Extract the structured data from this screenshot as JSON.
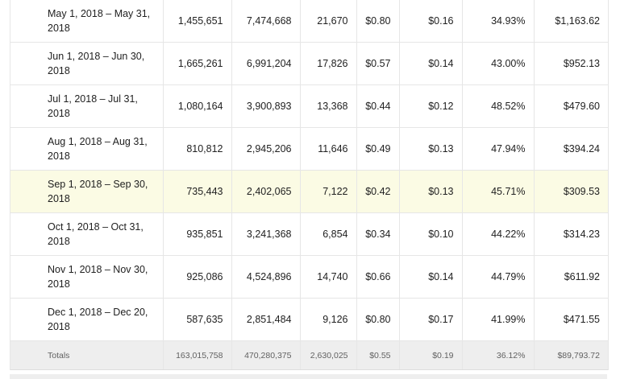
{
  "rows": [
    {
      "period": "May 1, 2018 – May 31, 2018",
      "c1": "1,455,651",
      "c2": "7,474,668",
      "c3": "21,670",
      "c4": "$0.80",
      "c5": "$0.16",
      "c6": "34.93%",
      "c7": "$1,163.62"
    },
    {
      "period": "Jun 1, 2018 – Jun 30, 2018",
      "c1": "1,665,261",
      "c2": "6,991,204",
      "c3": "17,826",
      "c4": "$0.57",
      "c5": "$0.14",
      "c6": "43.00%",
      "c7": "$952.13"
    },
    {
      "period": "Jul 1, 2018 – Jul 31, 2018",
      "c1": "1,080,164",
      "c2": "3,900,893",
      "c3": "13,368",
      "c4": "$0.44",
      "c5": "$0.12",
      "c6": "48.52%",
      "c7": "$479.60"
    },
    {
      "period": "Aug 1, 2018 – Aug 31, 2018",
      "c1": "810,812",
      "c2": "2,945,206",
      "c3": "11,646",
      "c4": "$0.49",
      "c5": "$0.13",
      "c6": "47.94%",
      "c7": "$394.24"
    },
    {
      "period": "Sep 1, 2018 – Sep 30, 2018",
      "c1": "735,443",
      "c2": "2,402,065",
      "c3": "7,122",
      "c4": "$0.42",
      "c5": "$0.13",
      "c6": "45.71%",
      "c7": "$309.53"
    },
    {
      "period": "Oct 1, 2018 – Oct 31, 2018",
      "c1": "935,851",
      "c2": "3,241,368",
      "c3": "6,854",
      "c4": "$0.34",
      "c5": "$0.10",
      "c6": "44.22%",
      "c7": "$314.23"
    },
    {
      "period": "Nov 1, 2018 – Nov 30, 2018",
      "c1": "925,086",
      "c2": "4,524,896",
      "c3": "14,740",
      "c4": "$0.66",
      "c5": "$0.14",
      "c6": "44.79%",
      "c7": "$611.92"
    },
    {
      "period": "Dec 1, 2018 – Dec 20, 2018",
      "c1": "587,635",
      "c2": "2,851,484",
      "c3": "9,126",
      "c4": "$0.80",
      "c5": "$0.17",
      "c6": "41.99%",
      "c7": "$471.55"
    }
  ],
  "highlighted_row": "Sep 1, 2018 – Sep 30, 2018",
  "highlight_color": "#fbfbe4",
  "totals": {
    "label": "Totals",
    "c1": "163,015,758",
    "c2": "470,280,375",
    "c3": "2,630,025",
    "c4": "$0.55",
    "c5": "$0.19",
    "c6": "36.12%",
    "c7": "$89,793.72"
  }
}
